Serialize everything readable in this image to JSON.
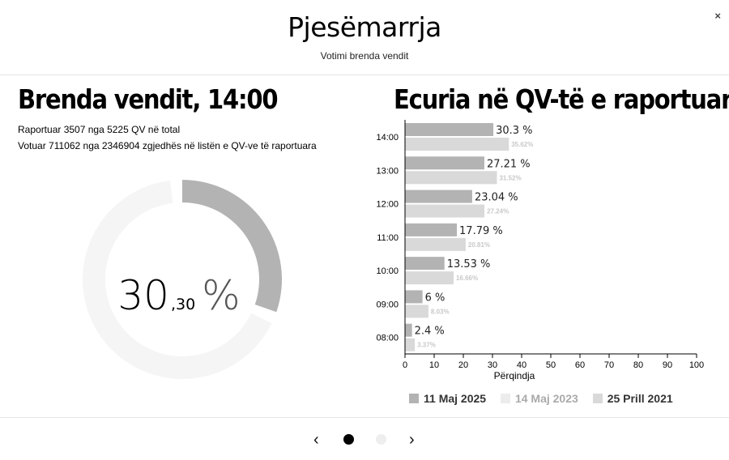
{
  "header": {
    "title": "Pjesëmarrja",
    "subtitle": "Votimi brenda vendit",
    "close_label": "×"
  },
  "left": {
    "heading": "Brenda vendit, 14:00",
    "line1": "Raportuar 3507 nga 5225 QV në total",
    "line2": "Votuar 711062 nga 2346904 zgjedhës në listën e QV-ve të raportuara",
    "gauge": {
      "value": 30.3,
      "whole": "30",
      "fraction": ",30",
      "unit": "%",
      "fill_color": "#b3b3b3",
      "track_color": "#f5f5f5"
    }
  },
  "right": {
    "heading": "Ecuria në QV-të e raportuara"
  },
  "chart_data": {
    "type": "bar",
    "orientation": "horizontal",
    "categories": [
      "14:00",
      "13:00",
      "12:00",
      "11:00",
      "10:00",
      "09:00",
      "08:00"
    ],
    "series": [
      {
        "name": "11 Maj 2025",
        "values": [
          30.3,
          27.21,
          23.04,
          17.79,
          13.53,
          6,
          2.4
        ],
        "labels": [
          "30.3 %",
          "27.21 %",
          "23.04 %",
          "17.79 %",
          "13.53 %",
          "6 %",
          "2.4 %"
        ],
        "color": "#b3b3b3",
        "label_color": "#222222"
      },
      {
        "name": "14 Maj 2023",
        "values": [
          null,
          null,
          null,
          null,
          null,
          null,
          null
        ],
        "labels": [
          "",
          "",
          "",
          "",
          "",
          "",
          ""
        ],
        "color": "#ececec",
        "label_color": "#999999"
      },
      {
        "name": "25 Prill 2021",
        "values": [
          35.62,
          31.52,
          27.24,
          20.81,
          16.66,
          8.03,
          3.37
        ],
        "labels": [
          "35.62%",
          "31.52%",
          "27.24%",
          "20.81%",
          "16.66%",
          "8.03%",
          "3.37%"
        ],
        "color": "#d9d9d9",
        "label_color": "#c8c8c8"
      }
    ],
    "xlabel": "Përqindja",
    "xlim": [
      0,
      100
    ],
    "xticks": [
      "0",
      "10",
      "20",
      "30",
      "40",
      "50",
      "60",
      "70",
      "80",
      "90",
      "100"
    ],
    "grid": false,
    "legend": "bottom"
  },
  "legend": [
    {
      "label": "11 Maj 2025",
      "color": "#b3b3b3",
      "text_color": "#333333"
    },
    {
      "label": "14 Maj 2023",
      "color": "#ececec",
      "text_color": "#aaaaaa"
    },
    {
      "label": "25 Prill 2021",
      "color": "#d9d9d9",
      "text_color": "#333333"
    }
  ],
  "pager": {
    "prev": "‹",
    "next": "›",
    "active_color": "#000000",
    "inactive_color": "#eeeeee"
  }
}
